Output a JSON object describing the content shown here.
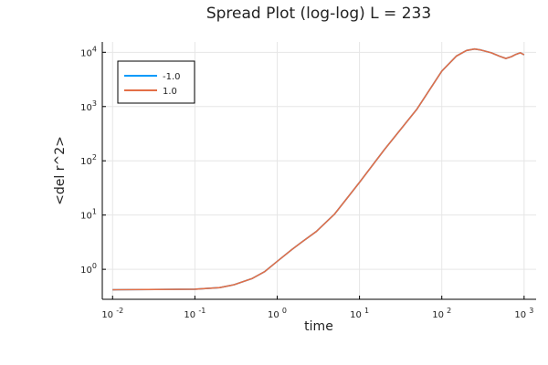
{
  "chart_data": {
    "type": "line",
    "title": "Spread Plot (log-log) L = 233",
    "xlabel": "time",
    "ylabel": "<del r^2>",
    "xscale": "log",
    "yscale": "log",
    "xlim": [
      0.0075,
      1400
    ],
    "ylim": [
      0.28,
      15500
    ],
    "grid": true,
    "legend_position": "top-left",
    "x_ticks": [
      {
        "value": 0.01,
        "base": "10",
        "exp": "-2"
      },
      {
        "value": 0.1,
        "base": "10",
        "exp": "-1"
      },
      {
        "value": 1,
        "base": "10",
        "exp": "0"
      },
      {
        "value": 10,
        "base": "10",
        "exp": "1"
      },
      {
        "value": 100,
        "base": "10",
        "exp": "2"
      },
      {
        "value": 1000,
        "base": "10",
        "exp": "3"
      }
    ],
    "y_ticks": [
      {
        "value": 1,
        "base": "10",
        "exp": "0"
      },
      {
        "value": 10,
        "base": "10",
        "exp": "1"
      },
      {
        "value": 100,
        "base": "10",
        "exp": "2"
      },
      {
        "value": 1000,
        "base": "10",
        "exp": "3"
      },
      {
        "value": 10000,
        "base": "10",
        "exp": "4"
      }
    ],
    "series": [
      {
        "name": "-1.0",
        "color": "#009AFA",
        "x": [
          0.01,
          0.1,
          0.2,
          0.3,
          0.5,
          0.7,
          1,
          1.5,
          2,
          3,
          5,
          10,
          20,
          50,
          100,
          150,
          200,
          250,
          300,
          400,
          500,
          600,
          700,
          800,
          900,
          1000
        ],
        "y": [
          0.42,
          0.43,
          0.46,
          0.52,
          0.68,
          0.9,
          1.4,
          2.3,
          3.2,
          5.0,
          10.5,
          40,
          160,
          900,
          4500,
          8500,
          10800,
          11500,
          11000,
          9800,
          8500,
          7700,
          8300,
          9200,
          9800,
          9000
        ]
      },
      {
        "name": "1.0",
        "color": "#E36F47",
        "x": [
          0.01,
          0.1,
          0.2,
          0.3,
          0.5,
          0.7,
          1,
          1.5,
          2,
          3,
          5,
          10,
          20,
          50,
          100,
          150,
          200,
          250,
          300,
          400,
          500,
          600,
          700,
          800,
          900,
          1000
        ],
        "y": [
          0.42,
          0.43,
          0.46,
          0.52,
          0.68,
          0.9,
          1.4,
          2.3,
          3.2,
          5.0,
          10.5,
          40,
          160,
          900,
          4500,
          8500,
          10800,
          11500,
          11000,
          9800,
          8500,
          7700,
          8300,
          9200,
          9800,
          9000
        ]
      }
    ]
  }
}
